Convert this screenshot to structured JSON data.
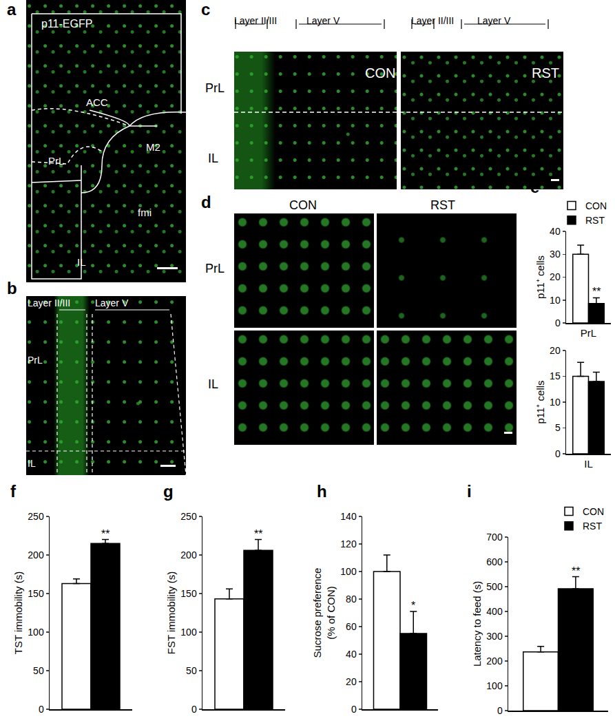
{
  "panels": [
    {
      "label": "a",
      "texts": [
        "p11-EGFP",
        "ACC",
        "M2",
        "PrL",
        "IL",
        "fmi"
      ]
    },
    {
      "label": "b",
      "texts": [
        "Layer II/III",
        "Layer V",
        "PrL",
        "IL"
      ]
    },
    {
      "label": "c",
      "texts": [
        "Layer II/III",
        "Layer V",
        "Layer II/III",
        "Layer V",
        "CON",
        "RST",
        "PrL",
        "IL"
      ]
    },
    {
      "label": "d",
      "texts": [
        "CON",
        "RST",
        "PrL",
        "IL"
      ]
    }
  ],
  "chart_data": [
    {
      "label": "e",
      "type": "bar",
      "categories": [
        "PrL"
      ],
      "y_label": "p11⁺ cells",
      "series": [
        {
          "name": "CON",
          "color": "#ffffff",
          "values": [
            30
          ],
          "error": [
            4
          ]
        },
        {
          "name": "RST",
          "color": "#000000",
          "values": [
            8.5
          ],
          "error": [
            2.5
          ]
        }
      ],
      "ylim": [
        0,
        40
      ],
      "yticks": [
        0,
        10,
        20,
        30,
        40
      ],
      "legend": "top right",
      "annotations": [
        {
          "text": "**",
          "series": "RST"
        }
      ]
    },
    {
      "type": "bar",
      "categories": [
        "IL"
      ],
      "y_label": "p11⁺ cells",
      "series": [
        {
          "name": "CON",
          "color": "#ffffff",
          "values": [
            15
          ],
          "error": [
            2.7
          ]
        },
        {
          "name": "RST",
          "color": "#000000",
          "values": [
            14
          ],
          "error": [
            1.8
          ]
        }
      ],
      "ylim": [
        0,
        20
      ],
      "yticks": [
        0,
        5,
        10,
        15,
        20
      ]
    },
    {
      "label": "f",
      "type": "bar",
      "categories": [
        null
      ],
      "y_label": "TST immobility (s)",
      "tick_labels": "y",
      "series": [
        {
          "name": "CON",
          "color": "#ffffff",
          "values": [
            163
          ],
          "error": [
            6
          ]
        },
        {
          "name": "RST",
          "color": "#000000",
          "values": [
            215
          ],
          "error": [
            5
          ]
        }
      ],
      "ylim": [
        0,
        250
      ],
      "yticks": [
        0,
        50,
        100,
        150,
        200,
        250
      ],
      "annotations": [
        {
          "text": "**",
          "series": "RST"
        }
      ]
    },
    {
      "label": "g",
      "type": "bar",
      "categories": [
        null
      ],
      "y_label": "FST immobility (s)",
      "tick_labels": "y",
      "series": [
        {
          "name": "CON",
          "color": "#ffffff",
          "values": [
            143
          ],
          "error": [
            13
          ]
        },
        {
          "name": "RST",
          "color": "#000000",
          "values": [
            206
          ],
          "error": [
            14
          ]
        }
      ],
      "ylim": [
        0,
        250
      ],
      "yticks": [
        0,
        50,
        100,
        150,
        200,
        250
      ],
      "annotations": [
        {
          "text": "**",
          "series": "RST"
        }
      ]
    },
    {
      "label": "h",
      "type": "bar",
      "categories": [
        null
      ],
      "y_label": "Sucrose preference\n(% of CON)",
      "tick_labels": "y",
      "series": [
        {
          "name": "CON",
          "color": "#ffffff",
          "values": [
            100
          ],
          "error": [
            12
          ]
        },
        {
          "name": "RST",
          "color": "#000000",
          "values": [
            55
          ],
          "error": [
            16
          ]
        }
      ],
      "ylim": [
        0,
        140
      ],
      "yticks": [
        0,
        20,
        40,
        60,
        80,
        100,
        120,
        140
      ],
      "annotations": [
        {
          "text": "*",
          "series": "RST"
        }
      ]
    },
    {
      "label": "i",
      "type": "bar",
      "categories": [
        null
      ],
      "y_label": "Latency to feed (s)",
      "tick_labels": "y",
      "series": [
        {
          "name": "CON",
          "color": "#ffffff",
          "values": [
            237
          ],
          "error": [
            22
          ]
        },
        {
          "name": "RST",
          "color": "#000000",
          "values": [
            492
          ],
          "error": [
            48
          ]
        }
      ],
      "ylim": [
        0,
        700
      ],
      "yticks": [
        0,
        100,
        200,
        300,
        400,
        500,
        600,
        700
      ],
      "legend": "top right",
      "annotations": [
        {
          "text": "**",
          "series": "RST"
        }
      ]
    }
  ]
}
